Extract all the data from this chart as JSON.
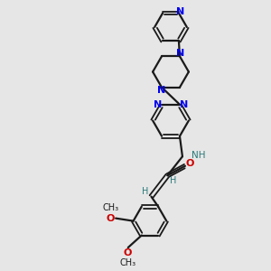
{
  "bg_color": "#e6e6e6",
  "bond_color": "#1a1a1a",
  "n_color": "#0000ee",
  "o_color": "#cc0000",
  "teal_color": "#2a7a7a",
  "figsize": [
    3.0,
    3.0
  ],
  "dpi": 100,
  "xlim": [
    0,
    10
  ],
  "ylim": [
    0,
    10
  ]
}
